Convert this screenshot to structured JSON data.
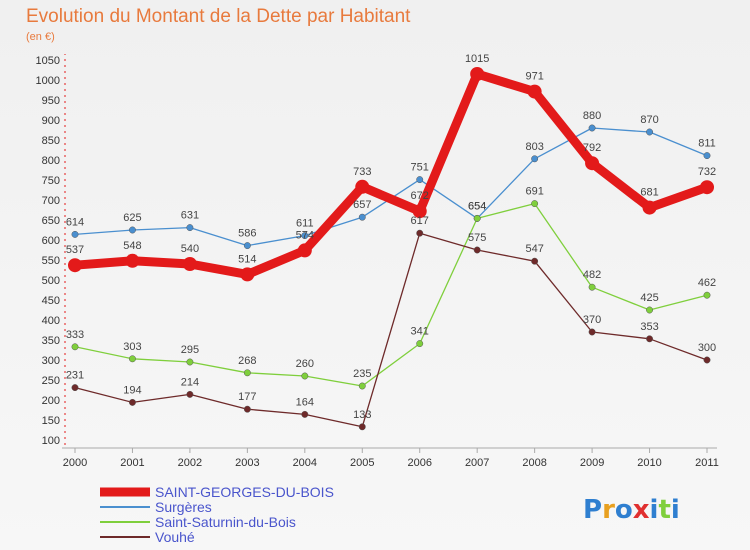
{
  "chart_data": {
    "type": "line",
    "title": "Evolution du Montant de la Dette par Habitant",
    "subtitle": "(en €)",
    "x": [
      "2000",
      "2001",
      "2002",
      "2003",
      "2004",
      "2005",
      "2006",
      "2007",
      "2008",
      "2009",
      "2010",
      "2011"
    ],
    "ylim": [
      100,
      1050
    ],
    "yticks": [
      100,
      150,
      200,
      250,
      300,
      350,
      400,
      450,
      500,
      550,
      600,
      650,
      700,
      750,
      800,
      850,
      900,
      950,
      1000,
      1050
    ],
    "grid": false,
    "legend_placement": "bottom-left",
    "series": [
      {
        "name": "Surgères",
        "color": "#4a8fcf",
        "values": [
          614,
          625,
          631,
          586,
          611,
          657,
          751,
          654,
          803,
          880,
          870,
          811
        ],
        "labels": [
          "614",
          "625",
          "631",
          "586",
          "611",
          "657",
          "751",
          "654",
          "803",
          "880",
          "870",
          "811"
        ]
      },
      {
        "name": "Saint-Saturnin-du-Bois",
        "color": "#7fcf3c",
        "values": [
          333,
          303,
          295,
          268,
          260,
          235,
          341,
          654,
          691,
          482,
          425,
          462
        ],
        "labels": [
          "333",
          "303",
          "295",
          "268",
          "260",
          "235",
          "341",
          "654",
          "691",
          "482",
          "425",
          "462"
        ]
      },
      {
        "name": "Vouhé",
        "color": "#6e2a2a",
        "values": [
          231,
          194,
          214,
          177,
          164,
          133,
          617,
          575,
          547,
          370,
          353,
          300
        ],
        "labels": [
          "231",
          "194",
          "214",
          "177",
          "164",
          "133",
          "617",
          "575",
          "547",
          "370",
          "353",
          "300"
        ]
      },
      {
        "name": "SAINT-GEORGES-DU-BOIS",
        "color": "#e31a1a",
        "values": [
          537,
          548,
          540,
          514,
          574,
          733,
          672,
          1015,
          971,
          792,
          681,
          732
        ],
        "labels": [
          "537",
          "548",
          "540",
          "514",
          "574",
          "733",
          "672",
          "1015",
          "971",
          "792",
          "681",
          "732"
        ]
      }
    ]
  },
  "legend": {
    "items": [
      {
        "name": "SAINT-GEORGES-DU-BOIS",
        "color": "#e31a1a"
      },
      {
        "name": "Surgères",
        "color": "#4a8fcf"
      },
      {
        "name": "Saint-Saturnin-du-Bois",
        "color": "#7fcf3c"
      },
      {
        "name": "Vouhé",
        "color": "#6e2a2a"
      }
    ]
  },
  "logo": {
    "text": "Proxiti",
    "colors": [
      "#2f7fd0",
      "#e8a020",
      "#2f7fd0",
      "#e03030",
      "#2f7fd0",
      "#7fcf3c",
      "#2f7fd0"
    ]
  }
}
